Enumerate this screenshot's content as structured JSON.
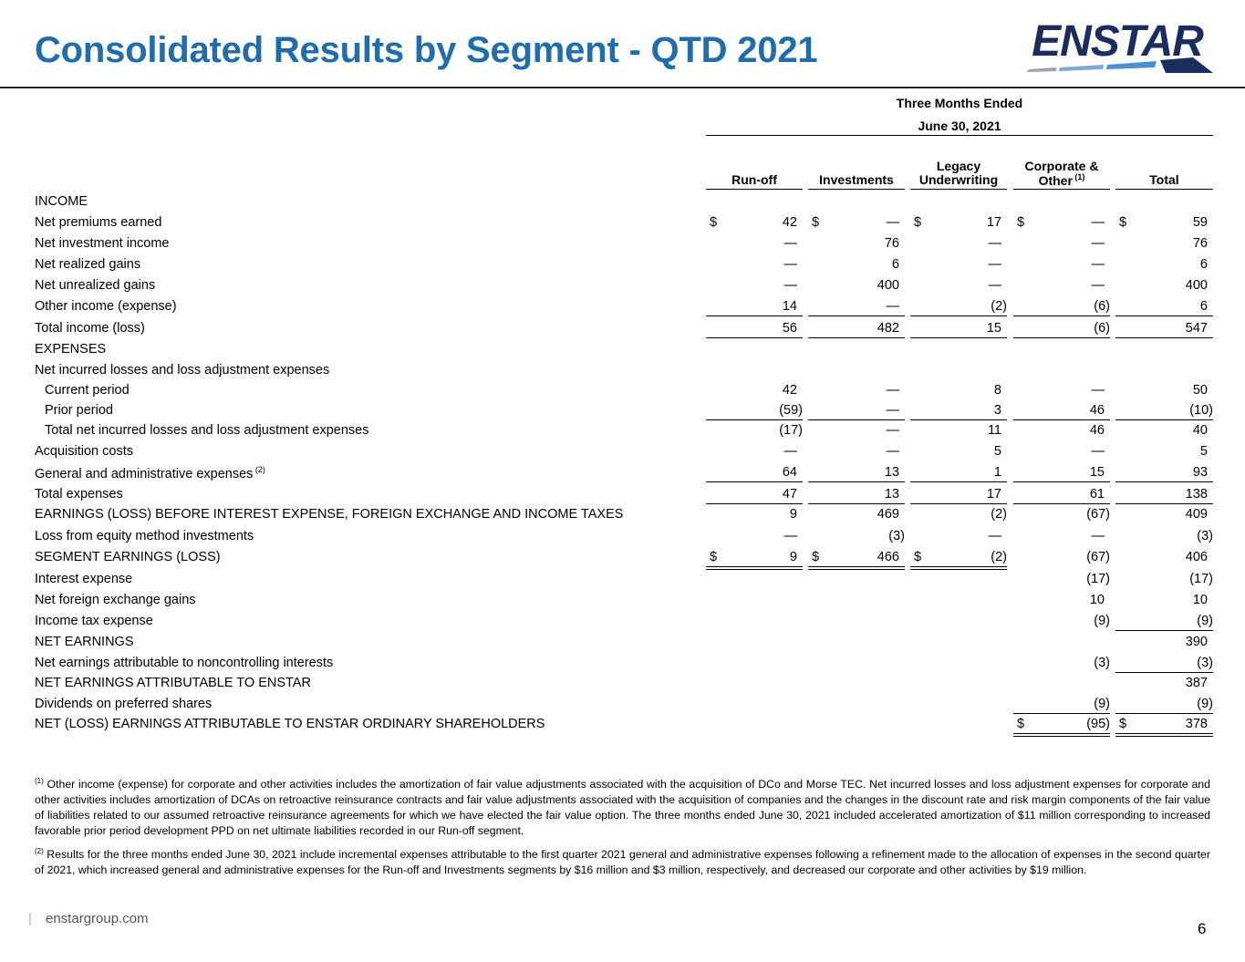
{
  "title": "Consolidated Results by Segment - QTD 2021",
  "logo": {
    "text": "ENSTAR",
    "color": "#1b2c5e",
    "accent": "#4a90d9"
  },
  "header": {
    "period_line1": "Three Months Ended",
    "period_line2": "June 30, 2021",
    "columns": [
      {
        "line1": "",
        "line2": "Run-off",
        "sup": ""
      },
      {
        "line1": "",
        "line2": "Investments",
        "sup": ""
      },
      {
        "line1": "Legacy",
        "line2": "Underwriting",
        "sup": ""
      },
      {
        "line1": "Corporate &",
        "line2": "Other",
        "sup": "(1)"
      },
      {
        "line1": "",
        "line2": "Total",
        "sup": ""
      }
    ]
  },
  "rows": [
    {
      "label": "INCOME",
      "sup": "",
      "indent": false,
      "values": [
        "",
        "",
        "",
        "",
        ""
      ]
    },
    {
      "label": "Net premiums earned",
      "sup": "",
      "indent": false,
      "values": [
        "42",
        "—",
        "17",
        "—",
        "59"
      ],
      "dollars": [
        true,
        true,
        true,
        true,
        true
      ]
    },
    {
      "label": "Net investment income",
      "sup": "",
      "indent": false,
      "values": [
        "—",
        "76",
        "—",
        "—",
        "76"
      ]
    },
    {
      "label": "Net realized gains",
      "sup": "",
      "indent": false,
      "values": [
        "—",
        "6",
        "—",
        "—",
        "6"
      ]
    },
    {
      "label": "Net unrealized gains",
      "sup": "",
      "indent": false,
      "values": [
        "—",
        "400",
        "—",
        "—",
        "400"
      ]
    },
    {
      "label": "Other income (expense)",
      "sup": "",
      "indent": false,
      "values": [
        "14",
        "—",
        "(2)",
        "(6)",
        "6"
      ]
    },
    {
      "label": "Total income (loss)",
      "sup": "",
      "indent": false,
      "values": [
        "56",
        "482",
        "15",
        "(6)",
        "547"
      ]
    },
    {
      "label": "EXPENSES",
      "sup": "",
      "indent": false,
      "values": [
        "",
        "",
        "",
        "",
        ""
      ]
    },
    {
      "label": "Net incurred losses and loss adjustment expenses",
      "sup": "",
      "indent": false,
      "values": [
        "",
        "",
        "",
        "",
        ""
      ]
    },
    {
      "label": "Current period",
      "sup": "",
      "indent": true,
      "values": [
        "42",
        "—",
        "8",
        "—",
        "50"
      ]
    },
    {
      "label": "Prior period",
      "sup": "",
      "indent": true,
      "values": [
        "(59)",
        "—",
        "3",
        "46",
        "(10)"
      ]
    },
    {
      "label": "Total net incurred losses and loss adjustment expenses",
      "sup": "",
      "indent": true,
      "values": [
        "(17)",
        "—",
        "11",
        "46",
        "40"
      ]
    },
    {
      "label": "Acquisition costs",
      "sup": "",
      "indent": false,
      "values": [
        "—",
        "—",
        "5",
        "—",
        "5"
      ]
    },
    {
      "label": "General and administrative expenses",
      "sup": "(2)",
      "indent": false,
      "values": [
        "64",
        "13",
        "1",
        "15",
        "93"
      ]
    },
    {
      "label": "Total expenses",
      "sup": "",
      "indent": false,
      "values": [
        "47",
        "13",
        "17",
        "61",
        "138"
      ]
    },
    {
      "label": "EARNINGS (LOSS) BEFORE INTEREST EXPENSE, FOREIGN EXCHANGE AND INCOME TAXES",
      "sup": "",
      "indent": false,
      "values": [
        "9",
        "469",
        "(2)",
        "(67)",
        "409"
      ]
    },
    {
      "label": "Loss from equity method investments",
      "sup": "",
      "indent": false,
      "values": [
        "—",
        "(3)",
        "—",
        "—",
        "(3)"
      ]
    },
    {
      "label": "SEGMENT EARNINGS (LOSS)",
      "sup": "",
      "indent": false,
      "values": [
        "9",
        "466",
        "(2)",
        "(67)",
        "406"
      ],
      "dollars": [
        true,
        true,
        true,
        false,
        false
      ]
    },
    {
      "label": "Interest expense",
      "sup": "",
      "indent": false,
      "values": [
        "",
        "",
        "",
        "(17)",
        "(17)"
      ]
    },
    {
      "label": "Net foreign exchange gains",
      "sup": "",
      "indent": false,
      "values": [
        "",
        "",
        "",
        "10",
        "10"
      ]
    },
    {
      "label": "Income tax expense",
      "sup": "",
      "indent": false,
      "values": [
        "",
        "",
        "",
        "(9)",
        "(9)"
      ]
    },
    {
      "label": "NET EARNINGS",
      "sup": "",
      "indent": false,
      "values": [
        "",
        "",
        "",
        "",
        "390"
      ]
    },
    {
      "label": "Net earnings attributable to noncontrolling interests",
      "sup": "",
      "indent": false,
      "values": [
        "",
        "",
        "",
        "(3)",
        "(3)"
      ]
    },
    {
      "label": "NET EARNINGS ATTRIBUTABLE TO ENSTAR",
      "sup": "",
      "indent": false,
      "values": [
        "",
        "",
        "",
        "",
        "387"
      ]
    },
    {
      "label": "Dividends on preferred shares",
      "sup": "",
      "indent": false,
      "values": [
        "",
        "",
        "",
        "(9)",
        "(9)"
      ]
    },
    {
      "label": "NET (LOSS) EARNINGS ATTRIBUTABLE TO ENSTAR ORDINARY SHAREHOLDERS",
      "sup": "",
      "indent": false,
      "values": [
        "",
        "",
        "",
        "(95)",
        "378"
      ],
      "dollars": [
        false,
        false,
        false,
        true,
        true
      ]
    }
  ],
  "currency_symbol": "$",
  "footnotes": [
    {
      "mark": "(1)",
      "text": " Other income (expense) for corporate and other activities includes the amortization of fair value adjustments associated with the acquisition of DCo and Morse TEC. Net incurred losses and loss adjustment expenses for corporate and other activities includes amortization of DCAs on retroactive reinsurance contracts and fair value adjustments associated with the acquisition of companies and the changes in the discount rate and risk margin components of the fair value of liabilities related to our assumed retroactive reinsurance agreements for which we have elected the fair value option. The three months ended June 30, 2021 included accelerated amortization of $11 million corresponding to increased favorable prior period development PPD on net ultimate liabilities recorded in our Run-off segment."
    },
    {
      "mark": "(2)",
      "text": " Results for the three months ended June 30, 2021 include incremental expenses attributable to the first quarter 2021 general and administrative expenses following a refinement made to the allocation of expenses in the second quarter of 2021, which increased general and administrative expenses for the Run-off and Investments segments by $16 million and $3 million, respectively, and decreased our corporate and other activities by $19 million."
    }
  ],
  "footer": {
    "bar": "|",
    "site": "enstargroup.com",
    "page": "6"
  }
}
